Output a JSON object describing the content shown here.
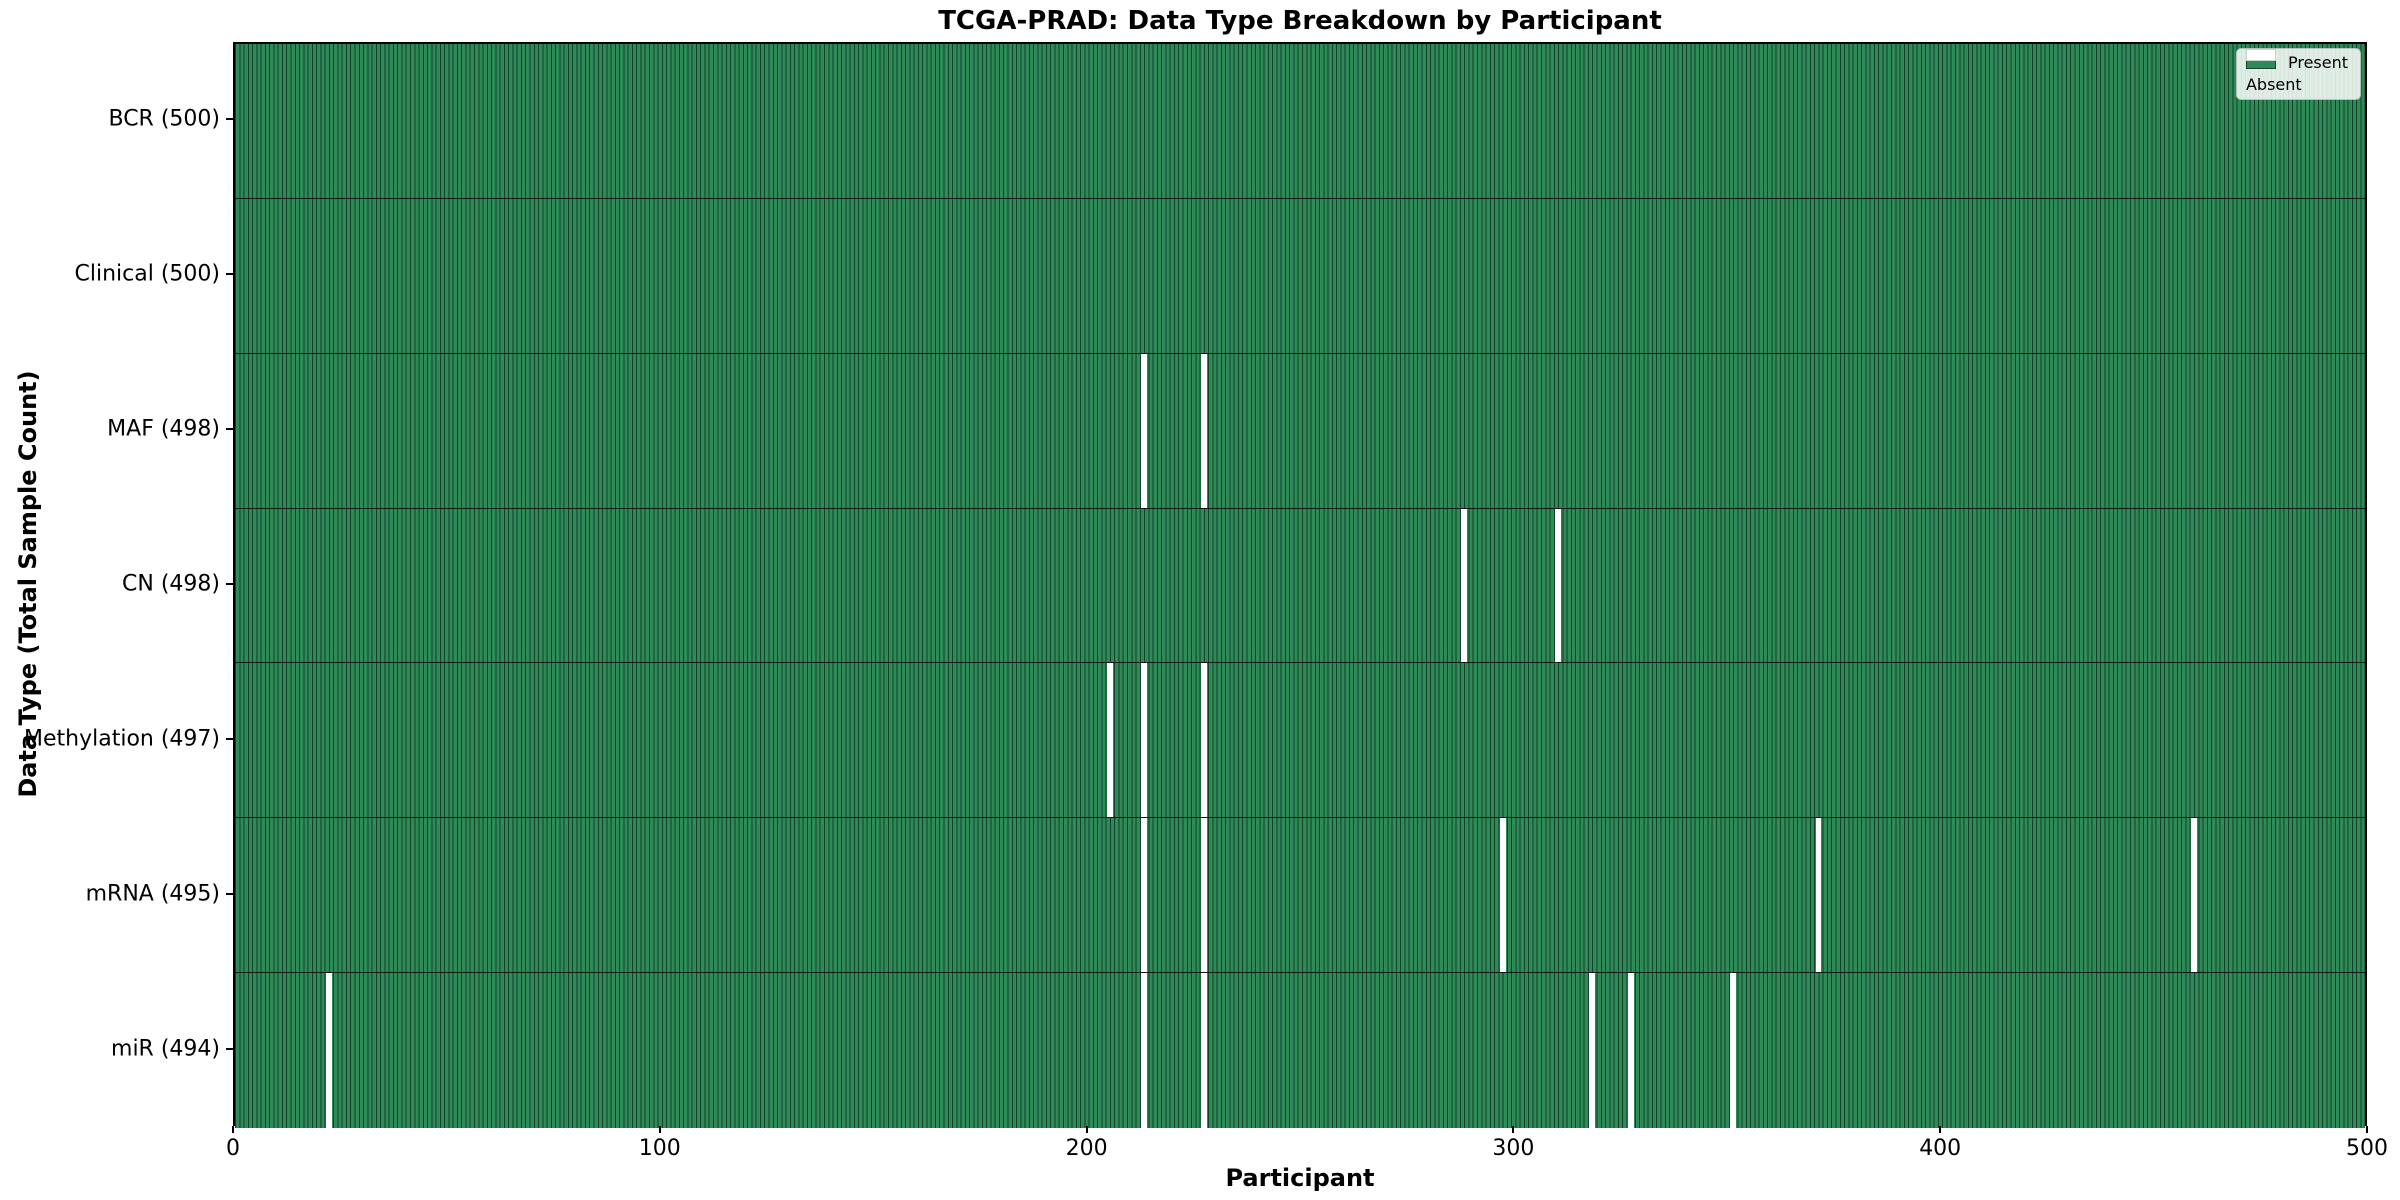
{
  "chart_data": {
    "type": "heatmap",
    "title": "TCGA-PRAD: Data Type Breakdown by Participant",
    "xlabel": "Participant",
    "ylabel": "Data Type (Total Sample Count)",
    "xlim": [
      0,
      500
    ],
    "x_ticks": [
      "0",
      "100",
      "200",
      "300",
      "400",
      "500"
    ],
    "n_participants": 500,
    "grid": false,
    "legend_position": "upper right",
    "colors": {
      "present": "#2e8b57",
      "absent": "#ffffff",
      "cell_edge": "#0a2618"
    },
    "legend": [
      {
        "label": "Present",
        "color": "#2e8b57"
      },
      {
        "label": "Absent",
        "color": "#ffffff"
      }
    ],
    "rows": [
      {
        "data_type": "BCR",
        "label": "BCR (500)",
        "total": 500,
        "absent_participants": []
      },
      {
        "data_type": "Clinical",
        "label": "Clinical (500)",
        "total": 500,
        "absent_participants": []
      },
      {
        "data_type": "MAF",
        "label": "MAF (498)",
        "total": 498,
        "absent_participants": [
          213,
          227
        ]
      },
      {
        "data_type": "CN",
        "label": "CN (498)",
        "total": 498,
        "absent_participants": [
          288,
          310
        ]
      },
      {
        "data_type": "Methylation",
        "label": "Methylation (497)",
        "total": 497,
        "absent_participants": [
          205,
          213,
          227
        ]
      },
      {
        "data_type": "mRNA",
        "label": "mRNA (495)",
        "total": 495,
        "absent_participants": [
          213,
          227,
          297,
          371,
          459
        ]
      },
      {
        "data_type": "miR",
        "label": "miR (494)",
        "total": 494,
        "absent_participants": [
          22,
          213,
          227,
          318,
          327,
          351
        ]
      }
    ]
  }
}
